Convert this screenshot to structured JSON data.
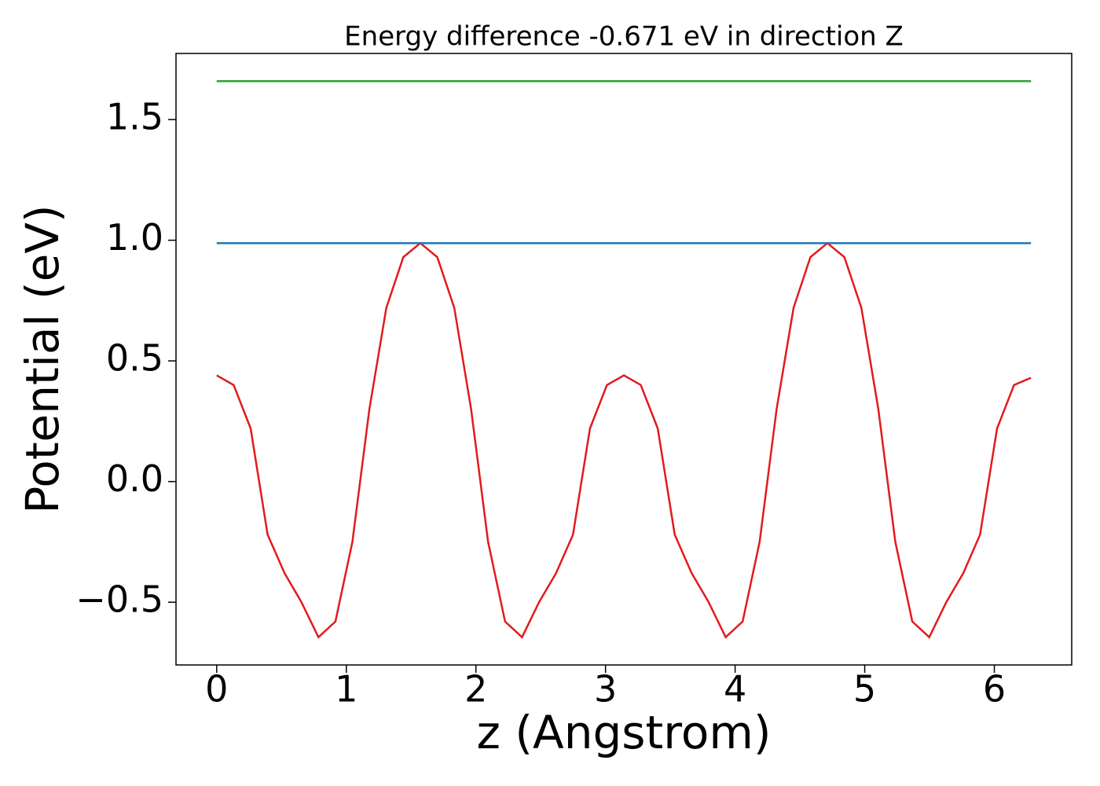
{
  "chart_data": {
    "type": "line",
    "title": "Energy difference -0.671 eV in direction Z",
    "xlabel": "z (Angstrom)",
    "ylabel": "Potential (eV)",
    "xlim": [
      -0.314,
      6.597
    ],
    "ylim": [
      -0.76,
      1.774
    ],
    "xticks": [
      0,
      1,
      2,
      3,
      4,
      5,
      6
    ],
    "yticks": [
      {
        "value": -0.5,
        "label": "−0.5"
      },
      {
        "value": 0,
        "label": "0.0"
      },
      0.5,
      {
        "value": 1,
        "label": "1.0"
      },
      1.5
    ],
    "grid": false,
    "series": [
      {
        "color": "#e31a1c",
        "x": [
          0,
          0.131,
          0.262,
          0.393,
          0.524,
          0.654,
          0.785,
          0.916,
          1.047,
          1.178,
          1.309,
          1.44,
          1.571,
          1.702,
          1.833,
          1.963,
          2.094,
          2.225,
          2.356,
          2.487,
          2.618,
          2.749,
          2.88,
          3.011,
          3.142,
          3.272,
          3.403,
          3.534,
          3.665,
          3.796,
          3.927,
          4.058,
          4.189,
          4.32,
          4.451,
          4.581,
          4.712,
          4.843,
          4.974,
          5.105,
          5.236,
          5.367,
          5.498,
          5.629,
          5.76,
          5.89,
          6.021,
          6.152,
          6.283
        ],
        "values": [
          0.44,
          0.4,
          0.22,
          -0.22,
          -0.38,
          -0.5,
          -0.645,
          -0.58,
          -0.25,
          0.3,
          0.72,
          0.93,
          0.988,
          0.93,
          0.72,
          0.3,
          -0.25,
          -0.58,
          -0.645,
          -0.5,
          -0.38,
          -0.22,
          0.22,
          0.4,
          0.44,
          0.4,
          0.22,
          -0.22,
          -0.38,
          -0.5,
          -0.645,
          -0.58,
          -0.25,
          0.3,
          0.72,
          0.93,
          0.988,
          0.93,
          0.72,
          0.3,
          -0.25,
          -0.58,
          -0.645,
          -0.5,
          -0.38,
          -0.22,
          0.22,
          0.4,
          0.43
        ]
      },
      {
        "color": "#1f77b4",
        "x": [
          0,
          6.283
        ],
        "values": [
          0.988,
          0.988
        ]
      },
      {
        "color": "#2ca02c",
        "x": [
          0,
          6.283
        ],
        "values": [
          1.659,
          1.659
        ]
      }
    ]
  }
}
